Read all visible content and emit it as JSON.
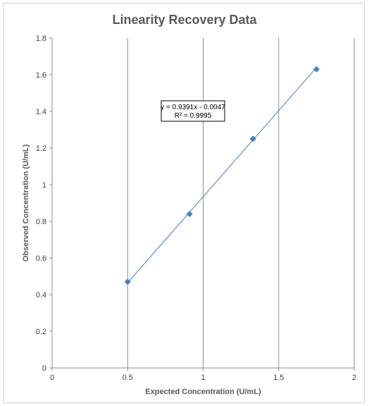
{
  "chart_data": {
    "type": "scatter",
    "title": "Linearity Recovery Data",
    "xlabel": "Expected Concentration (U/mL)",
    "ylabel": "Observed Concentration (U/mL)",
    "xlim": [
      0,
      2
    ],
    "ylim": [
      0,
      1.8
    ],
    "x_ticks": [
      "0",
      "0.5",
      "1",
      "1.5",
      "2"
    ],
    "y_ticks": [
      "0",
      "0.2",
      "0.4",
      "0.6",
      "0.8",
      "1",
      "1.2",
      "1.4",
      "1.6",
      "1.8"
    ],
    "grid": "vertical",
    "legend": "none",
    "series": [
      {
        "x": [
          0.5,
          0.91,
          1.33,
          1.75
        ],
        "y": [
          0.47,
          0.84,
          1.25,
          1.63
        ],
        "color": "#4a7ebb"
      }
    ],
    "trendline": {
      "type": "linear",
      "slope": 0.9391,
      "intercept": -0.0047,
      "equation": "y = 0.9391x - 0.0047",
      "r_squared": "R² = 0.9995",
      "color": "#4a7ebb"
    }
  }
}
